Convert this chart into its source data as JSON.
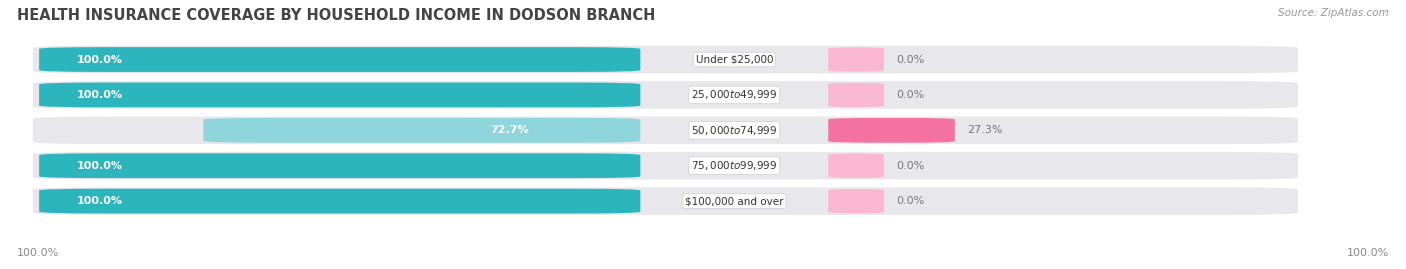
{
  "title": "HEALTH INSURANCE COVERAGE BY HOUSEHOLD INCOME IN DODSON BRANCH",
  "source": "Source: ZipAtlas.com",
  "categories": [
    "Under $25,000",
    "$25,000 to $49,999",
    "$50,000 to $74,999",
    "$75,000 to $99,999",
    "$100,000 and over"
  ],
  "with_coverage": [
    100.0,
    100.0,
    72.7,
    100.0,
    100.0
  ],
  "without_coverage": [
    0.0,
    0.0,
    27.3,
    0.0,
    0.0
  ],
  "color_with_full": "#2db5be",
  "color_with_light": "#8fd6dc",
  "color_without_full": "#f472a0",
  "color_without_light": "#f9b8cf",
  "bg_color": "#ffffff",
  "row_bg": "#e8e8ec",
  "title_fontsize": 10.5,
  "label_fontsize": 8.0,
  "source_fontsize": 7.5,
  "legend_fontsize": 8.5,
  "left_label": "100.0%",
  "right_label": "100.0%"
}
